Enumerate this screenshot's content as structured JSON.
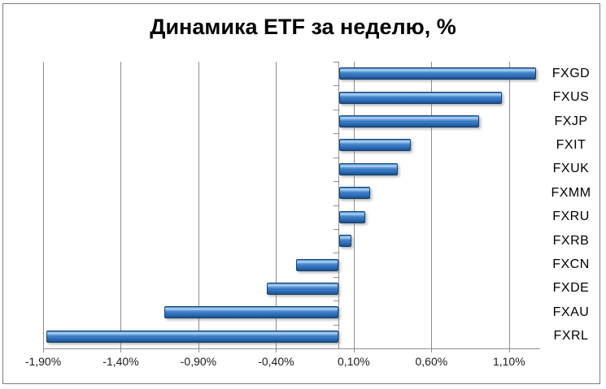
{
  "title": "Динамика ETF за неделю, %",
  "chart_data": {
    "type": "bar",
    "orientation": "horizontal",
    "title": "Динамика ETF за неделю, %",
    "xlabel": "",
    "ylabel": "",
    "categories": [
      "FXGD",
      "FXUS",
      "FXJP",
      "FXIT",
      "FXUK",
      "FXMM",
      "FXRU",
      "FXRB",
      "FXCN",
      "FXDE",
      "FXAU",
      "FXRL"
    ],
    "values": [
      1.27,
      1.05,
      0.9,
      0.46,
      0.38,
      0.2,
      0.17,
      0.08,
      -0.27,
      -0.46,
      -1.12,
      -1.88
    ],
    "value_unit": "%",
    "xlim": [
      -1.9,
      1.3
    ],
    "x_tick_values": [
      -1.9,
      -1.4,
      -0.9,
      -0.4,
      0.1,
      0.6,
      1.1
    ],
    "x_tick_labels": [
      "-1,90%",
      "-1,40%",
      "-0,90%",
      "-0,40%",
      "0,10%",
      "0,60%",
      "1,10%"
    ],
    "grid": true,
    "legend": false,
    "colors": {
      "bar_fill": "#3F7FC8",
      "bar_highlight": "#AAD1F2",
      "bar_border": "#16406F",
      "gridline": "#8E8E8E",
      "frame_border": "#7D7D7D",
      "title_text": "#000000",
      "axis_label_text": "#1A1A1A",
      "background": "#FFFFFF"
    }
  }
}
